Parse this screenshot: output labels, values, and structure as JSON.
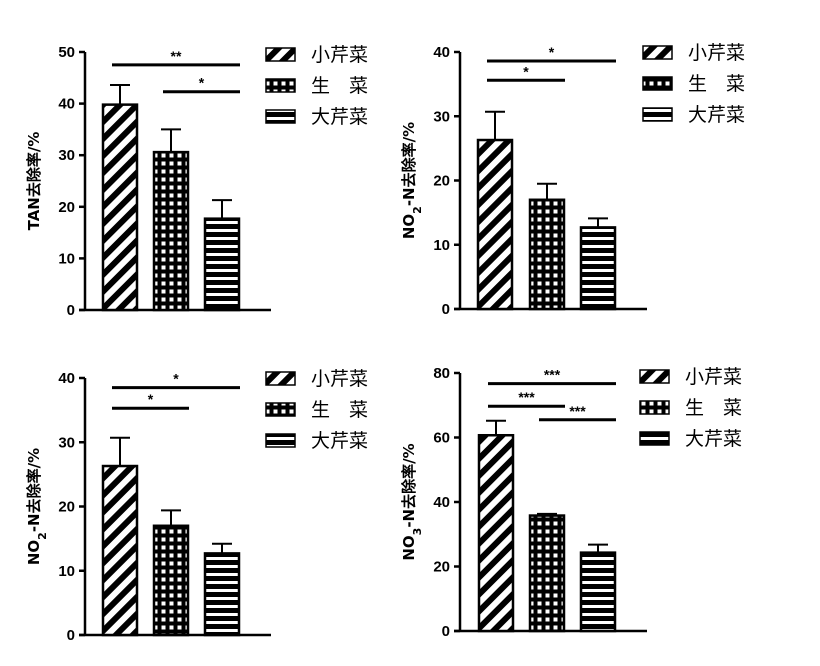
{
  "legend": [
    "小芹菜",
    "生　菜",
    "大芹菜"
  ],
  "chart_data": [
    {
      "type": "bar",
      "ylabel": "TAN去除率/%",
      "categories": [
        "小芹菜",
        "生菜",
        "大芹菜"
      ],
      "values": [
        39.8,
        30.6,
        17.7
      ],
      "errors": [
        3.8,
        4.4,
        3.6
      ],
      "ylim": [
        0,
        50
      ],
      "yticks": [
        0,
        10,
        20,
        30,
        40,
        50
      ],
      "significance": [
        {
          "from": 0,
          "to": 2,
          "label": "**",
          "y": 47.5
        },
        {
          "from": 1,
          "to": 2,
          "label": "*",
          "y": 42.3
        }
      ],
      "legend_position": "right",
      "grid": false
    },
    {
      "type": "bar",
      "ylabel": [
        "NO",
        "2",
        "-N去除率/%"
      ],
      "categories": [
        "小芹菜",
        "生菜",
        "大芹菜"
      ],
      "values": [
        26.3,
        17.0,
        12.7
      ],
      "errors": [
        4.4,
        2.5,
        1.4
      ],
      "ylim": [
        0,
        40
      ],
      "yticks": [
        0,
        10,
        20,
        30,
        40
      ],
      "significance": [
        {
          "from": 0,
          "to": 2,
          "label": "*",
          "y": 38.6
        },
        {
          "from": 0,
          "to": 1,
          "label": "*",
          "y": 35.6
        }
      ],
      "legend_position": "right",
      "grid": false
    },
    {
      "type": "bar",
      "ylabel": [
        "NO",
        "2",
        "-N去除率/%"
      ],
      "categories": [
        "小芹菜",
        "生菜",
        "大芹菜"
      ],
      "values": [
        26.3,
        17.0,
        12.7
      ],
      "errors": [
        4.4,
        2.4,
        1.5
      ],
      "ylim": [
        0,
        40
      ],
      "yticks": [
        0,
        10,
        20,
        30,
        40
      ],
      "significance": [
        {
          "from": 0,
          "to": 2,
          "label": "*",
          "y": 38.5
        },
        {
          "from": 0,
          "to": 1,
          "label": "*",
          "y": 35.3
        }
      ],
      "legend_position": "right",
      "grid": false
    },
    {
      "type": "bar",
      "ylabel": [
        "NO",
        "3",
        "-N去除率/%"
      ],
      "categories": [
        "小芹菜",
        "生菜",
        "大芹菜"
      ],
      "values": [
        60.7,
        35.8,
        24.3
      ],
      "errors": [
        4.5,
        0.5,
        2.5
      ],
      "ylim": [
        0,
        80
      ],
      "yticks": [
        0,
        20,
        40,
        60,
        80
      ],
      "significance": [
        {
          "from": 0,
          "to": 2,
          "label": "***",
          "y": 76.7
        },
        {
          "from": 0,
          "to": 1,
          "label": "***",
          "y": 69.7
        },
        {
          "from": 1,
          "to": 2,
          "label": "***",
          "y": 65.5
        }
      ],
      "legend_position": "right",
      "grid": false
    }
  ]
}
